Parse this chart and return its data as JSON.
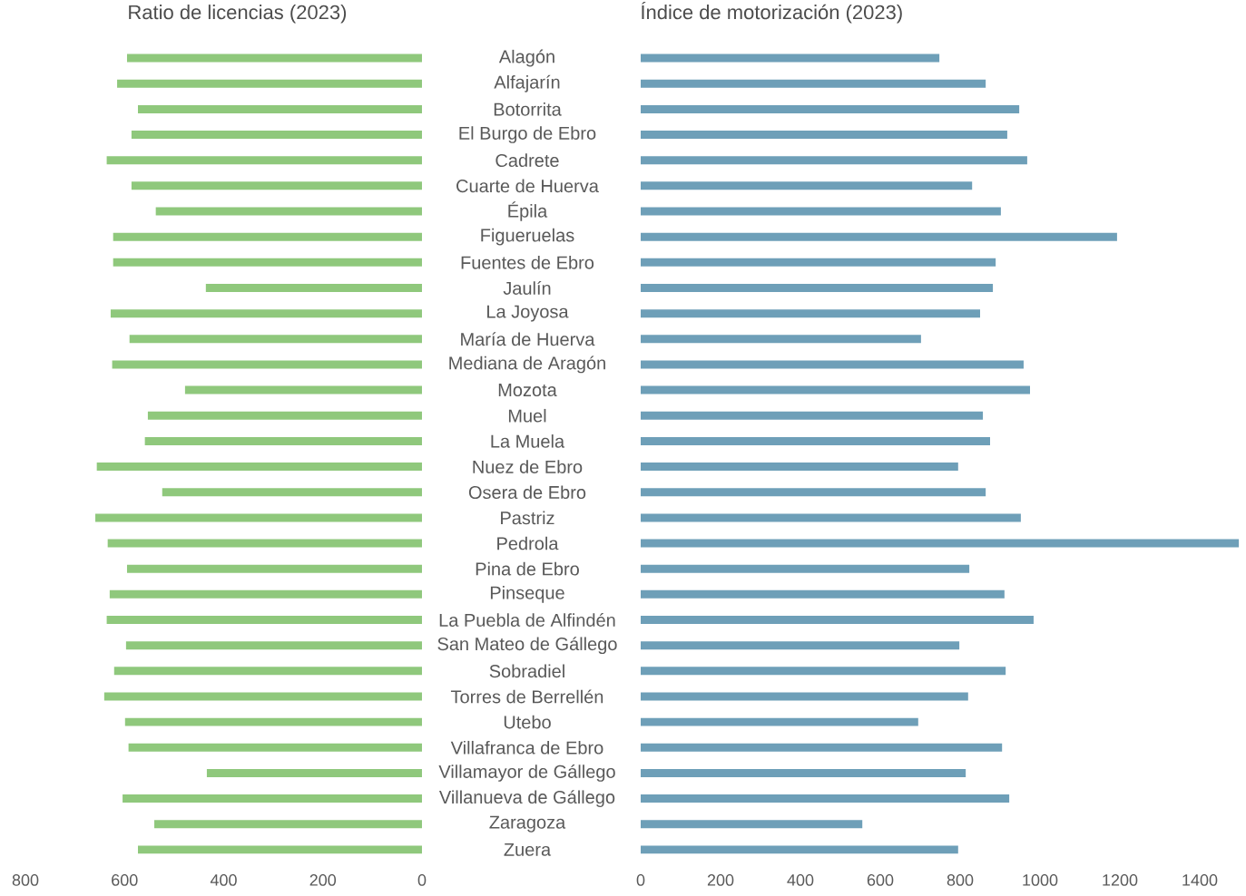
{
  "chart_data": [
    {
      "type": "bar",
      "orientation": "horizontal",
      "title": "Ratio de licencias (2023)",
      "color": "#8fc87c",
      "categories": [
        "Alagón",
        "Alfajarín",
        "Botorrita",
        "El Burgo de Ebro",
        "Cadrete",
        "Cuarte de Huerva",
        "Épila",
        "Figueruelas",
        "Fuentes de Ebro",
        "Jaulín",
        "La Joyosa",
        "María de Huerva",
        "Mediana de Aragón",
        "Mozota",
        "Muel",
        "La Muela",
        "Nuez de Ebro",
        "Osera de Ebro",
        "Pastriz",
        "Pedrola",
        "Pina de Ebro",
        "Pinseque",
        "La Puebla de Alfindén",
        "San Mateo de Gállego",
        "Sobradiel",
        "Torres de Berrellén",
        "Utebo",
        "Villafranca de Ebro",
        "Villamayor de Gállego",
        "Villanueva de Gállego",
        "Zaragoza",
        "Zuera"
      ],
      "values": [
        595,
        615,
        573,
        586,
        636,
        586,
        537,
        623,
        623,
        436,
        628,
        590,
        625,
        478,
        553,
        559,
        656,
        524,
        659,
        634,
        595,
        630,
        636,
        597,
        621,
        641,
        599,
        592,
        434,
        604,
        540,
        573
      ],
      "xlim": [
        800,
        0
      ],
      "xticks": [
        800,
        600,
        400,
        200,
        0
      ]
    },
    {
      "type": "bar",
      "orientation": "horizontal",
      "title": "Índice de motorización (2023)",
      "color": "#6e9fb8",
      "tick_labels": "x",
      "values": [
        748,
        864,
        948,
        918,
        968,
        830,
        902,
        1193,
        889,
        882,
        850,
        702,
        959,
        975,
        857,
        875,
        795,
        864,
        952,
        1498,
        823,
        911,
        984,
        798,
        914,
        820,
        695,
        905,
        814,
        923,
        555,
        795
      ],
      "xlim": [
        0,
        1500
      ],
      "xticks": [
        0,
        200,
        400,
        600,
        800,
        1000,
        1200,
        1400
      ]
    }
  ]
}
